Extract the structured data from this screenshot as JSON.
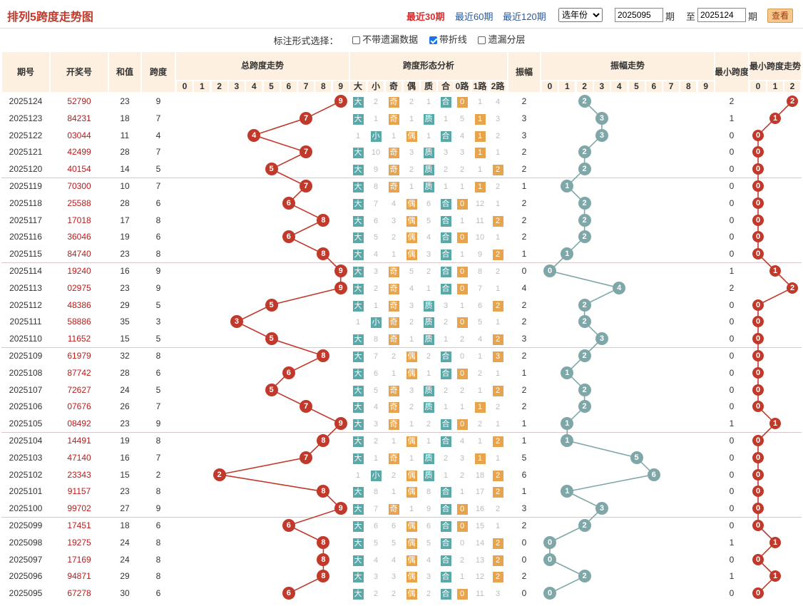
{
  "header": {
    "title": "排列5跨度走势图",
    "periods": [
      "最近30期",
      "最近60期",
      "最近120期"
    ],
    "active": "最近30期",
    "year_select": "选年份",
    "from_issue": "2025095",
    "to_issue": "2025124",
    "qi": "期",
    "zhi": "至",
    "query_btn": "查看"
  },
  "options": {
    "label": "标注形式选择：",
    "items": [
      {
        "label": "不带遗漏数据",
        "checked": false
      },
      {
        "label": "带折线",
        "checked": true
      },
      {
        "label": "遗漏分层",
        "checked": false
      }
    ]
  },
  "columns": {
    "issue": "期号",
    "draw": "开奖号",
    "sum": "和值",
    "span": "跨度",
    "span_trend": "总跨度走势",
    "span_form": "跨度形态分析",
    "form_cols": [
      "大",
      "小",
      "奇",
      "偶",
      "质",
      "合",
      "0路",
      "1路",
      "2路"
    ],
    "amp": "振幅",
    "amp_trend": "振幅走势",
    "min_span": "最小跨度",
    "min_trend": "最小跨度走势",
    "digits10": [
      "0",
      "1",
      "2",
      "3",
      "4",
      "5",
      "6",
      "7",
      "8",
      "9"
    ],
    "digits3": [
      "0",
      "1",
      "2"
    ]
  },
  "colors": {
    "red": "#c0392b",
    "teal": "#7fa7a8",
    "orange": "#e8a44c",
    "header_bg": "#fdf0e0"
  },
  "rows": [
    [
      "2025124",
      "52790",
      "23",
      "9",
      "大",
      "2",
      "奇",
      "2",
      "1",
      "合",
      "0",
      "1",
      "4",
      "2",
      "10",
      "5",
      "2",
      "1",
      "11",
      "21",
      "22",
      "2",
      "2",
      "1",
      "2"
    ],
    [
      "2025123",
      "84231",
      "18",
      "7",
      "大",
      "1",
      "奇",
      "1",
      "质",
      "1",
      "5",
      "1",
      "3",
      "3",
      "9",
      "4",
      "2",
      "3",
      "10",
      "20",
      "21",
      "1",
      "1",
      "1",
      "10"
    ],
    [
      "2025122",
      "03044",
      "11",
      "4",
      "1",
      "小",
      "1",
      "偶",
      "1",
      "合",
      "4",
      "1",
      "2",
      "3",
      "8",
      "3",
      "1",
      "3",
      "9",
      "19",
      "20",
      "0",
      "0",
      "8",
      "9"
    ],
    [
      "2025121",
      "42499",
      "28",
      "7",
      "大",
      "10",
      "奇",
      "3",
      "质",
      "3",
      "3",
      "1",
      "1",
      "2",
      "7",
      "2",
      "2",
      "11",
      "8",
      "18",
      "19",
      "0",
      "0",
      "7",
      "8"
    ],
    [
      "2025120",
      "40154",
      "14",
      "5",
      "大",
      "9",
      "奇",
      "2",
      "质",
      "2",
      "2",
      "1",
      "2",
      "2",
      "6",
      "1",
      "2",
      "10",
      "7",
      "17",
      "18",
      "0",
      "0",
      "6",
      "7"
    ],
    [
      "2025119",
      "70300",
      "10",
      "7",
      "大",
      "8",
      "奇",
      "1",
      "质",
      "1",
      "1",
      "1",
      "2",
      "1",
      "5",
      "1",
      "1",
      "9",
      "6",
      "16",
      "17",
      "0",
      "0",
      "5",
      "6"
    ],
    [
      "2025118",
      "25588",
      "28",
      "6",
      "大",
      "7",
      "4",
      "偶",
      "6",
      "合",
      "0",
      "12",
      "1",
      "2",
      "4",
      "3",
      "2",
      "8",
      "5",
      "15",
      "16",
      "0",
      "0",
      "4",
      "5"
    ],
    [
      "2025117",
      "17018",
      "17",
      "8",
      "大",
      "6",
      "3",
      "偶",
      "5",
      "合",
      "1",
      "11",
      "2",
      "2",
      "3",
      "2",
      "2",
      "7",
      "4",
      "14",
      "15",
      "0",
      "0",
      "3",
      "4"
    ],
    [
      "2025116",
      "36046",
      "19",
      "6",
      "大",
      "5",
      "2",
      "偶",
      "4",
      "合",
      "0",
      "10",
      "1",
      "2",
      "2",
      "1",
      "2",
      "6",
      "3",
      "13",
      "14",
      "0",
      "0",
      "2",
      "3"
    ],
    [
      "2025115",
      "84740",
      "23",
      "8",
      "大",
      "4",
      "1",
      "偶",
      "3",
      "合",
      "1",
      "9",
      "2",
      "1",
      "1",
      "1",
      "3",
      "5",
      "2",
      "12",
      "13",
      "0",
      "0",
      "1",
      "2"
    ],
    [
      "2025114",
      "19240",
      "16",
      "9",
      "大",
      "3",
      "奇",
      "5",
      "2",
      "合",
      "0",
      "8",
      "2",
      "0",
      "0",
      "6",
      "2",
      "4",
      "1",
      "11",
      "12",
      "1",
      "2",
      "1",
      "1"
    ],
    [
      "2025113",
      "02975",
      "23",
      "9",
      "大",
      "2",
      "奇",
      "4",
      "1",
      "合",
      "0",
      "7",
      "1",
      "4",
      "15",
      "5",
      "1",
      "3",
      "4",
      "10",
      "11",
      "2",
      "1",
      "8",
      "2"
    ],
    [
      "2025112",
      "48386",
      "29",
      "5",
      "大",
      "1",
      "奇",
      "3",
      "质",
      "3",
      "1",
      "6",
      "2",
      "2",
      "14",
      "4",
      "2",
      "2",
      "37",
      "9",
      "10",
      "0",
      "0",
      "7",
      "7"
    ],
    [
      "2025111",
      "58886",
      "35",
      "3",
      "1",
      "小",
      "奇",
      "2",
      "质",
      "2",
      "0",
      "5",
      "1",
      "2",
      "13",
      "3",
      "2",
      "1",
      "36",
      "8",
      "9",
      "0",
      "0",
      "6",
      "6"
    ],
    [
      "2025110",
      "11652",
      "15",
      "5",
      "大",
      "8",
      "奇",
      "1",
      "质",
      "1",
      "2",
      "4",
      "2",
      "3",
      "12",
      "2",
      "1",
      "3",
      "35",
      "7",
      "8",
      "0",
      "0",
      "5",
      "99"
    ],
    [
      "2025109",
      "61979",
      "32",
      "8",
      "大",
      "7",
      "2",
      "偶",
      "2",
      "合",
      "0",
      "1",
      "3",
      "2",
      "11",
      "1",
      "2",
      "9",
      "34",
      "6",
      "7",
      "0",
      "0",
      "4",
      "98"
    ],
    [
      "2025108",
      "87742",
      "28",
      "6",
      "大",
      "6",
      "1",
      "偶",
      "1",
      "合",
      "0",
      "2",
      "1",
      "1",
      "10",
      "1",
      "1",
      "8",
      "33",
      "5",
      "6",
      "0",
      "0",
      "3",
      "97"
    ],
    [
      "2025107",
      "72627",
      "24",
      "5",
      "大",
      "5",
      "奇",
      "3",
      "质",
      "2",
      "2",
      "1",
      "2",
      "2",
      "9",
      "2",
      "2",
      "7",
      "32",
      "4",
      "5",
      "0",
      "0",
      "2",
      "96"
    ],
    [
      "2025106",
      "07676",
      "26",
      "7",
      "大",
      "4",
      "奇",
      "2",
      "质",
      "1",
      "1",
      "1",
      "2",
      "2",
      "8",
      "1",
      "2",
      "6",
      "31",
      "3",
      "4",
      "0",
      "0",
      "1",
      "95"
    ],
    [
      "2025105",
      "08492",
      "23",
      "9",
      "大",
      "3",
      "奇",
      "1",
      "2",
      "合",
      "0",
      "2",
      "1",
      "1",
      "7",
      "1",
      "1",
      "6",
      "30",
      "2",
      "3",
      "1",
      "1",
      "1",
      "94"
    ],
    [
      "2025104",
      "14491",
      "19",
      "8",
      "大",
      "2",
      "1",
      "偶",
      "1",
      "合",
      "4",
      "1",
      "2",
      "1",
      "6",
      "1",
      "1",
      "5",
      "29",
      "1",
      "2",
      "0",
      "0",
      "6",
      "93"
    ],
    [
      "2025103",
      "47140",
      "16",
      "7",
      "大",
      "1",
      "奇",
      "1",
      "质",
      "2",
      "3",
      "1",
      "1",
      "5",
      "5",
      "2",
      "4",
      "3",
      "28",
      "5",
      "1",
      "0",
      "0",
      "5",
      "92"
    ],
    [
      "2025102",
      "23343",
      "15",
      "2",
      "1",
      "小",
      "2",
      "偶",
      "质",
      "1",
      "2",
      "18",
      "2",
      "6",
      "4",
      "1",
      "3",
      "2",
      "27",
      "9",
      "6",
      "0",
      "0",
      "4",
      "91"
    ],
    [
      "2025101",
      "91157",
      "23",
      "8",
      "大",
      "8",
      "1",
      "偶",
      "8",
      "合",
      "1",
      "17",
      "2",
      "1",
      "3",
      "1",
      "1",
      "1",
      "26",
      "8",
      "12",
      "0",
      "0",
      "3",
      "90"
    ],
    [
      "2025100",
      "99702",
      "27",
      "9",
      "大",
      "7",
      "奇",
      "1",
      "9",
      "合",
      "0",
      "16",
      "2",
      "3",
      "2",
      "16",
      "1",
      "3",
      "25",
      "7",
      "11",
      "0",
      "0",
      "2",
      "89"
    ],
    [
      "2025099",
      "17451",
      "18",
      "6",
      "大",
      "6",
      "6",
      "偶",
      "6",
      "合",
      "0",
      "15",
      "1",
      "2",
      "1",
      "15",
      "2",
      "5",
      "24",
      "6",
      "10",
      "0",
      "0",
      "1",
      "88"
    ],
    [
      "2025098",
      "19275",
      "24",
      "8",
      "大",
      "5",
      "5",
      "偶",
      "5",
      "合",
      "0",
      "14",
      "2",
      "0",
      "0",
      "14",
      "2",
      "4",
      "23",
      "5",
      "9",
      "1",
      "1",
      "1",
      "87"
    ],
    [
      "2025097",
      "17169",
      "24",
      "8",
      "大",
      "4",
      "4",
      "偶",
      "4",
      "合",
      "2",
      "13",
      "2",
      "0",
      "0",
      "13",
      "1",
      "3",
      "22",
      "4",
      "8",
      "0",
      "0",
      "1",
      "86"
    ],
    [
      "2025096",
      "94871",
      "29",
      "8",
      "大",
      "3",
      "3",
      "偶",
      "3",
      "合",
      "1",
      "12",
      "2",
      "2",
      "1",
      "12",
      "2",
      "2",
      "21",
      "3",
      "7",
      "1",
      "1",
      "1",
      "85"
    ],
    [
      "2025095",
      "67278",
      "30",
      "6",
      "大",
      "2",
      "2",
      "偶",
      "2",
      "合",
      "0",
      "11",
      "3",
      "0",
      "0",
      "11",
      "4",
      "1",
      "20",
      "2",
      "6",
      "0",
      "0",
      "1",
      "84"
    ]
  ]
}
